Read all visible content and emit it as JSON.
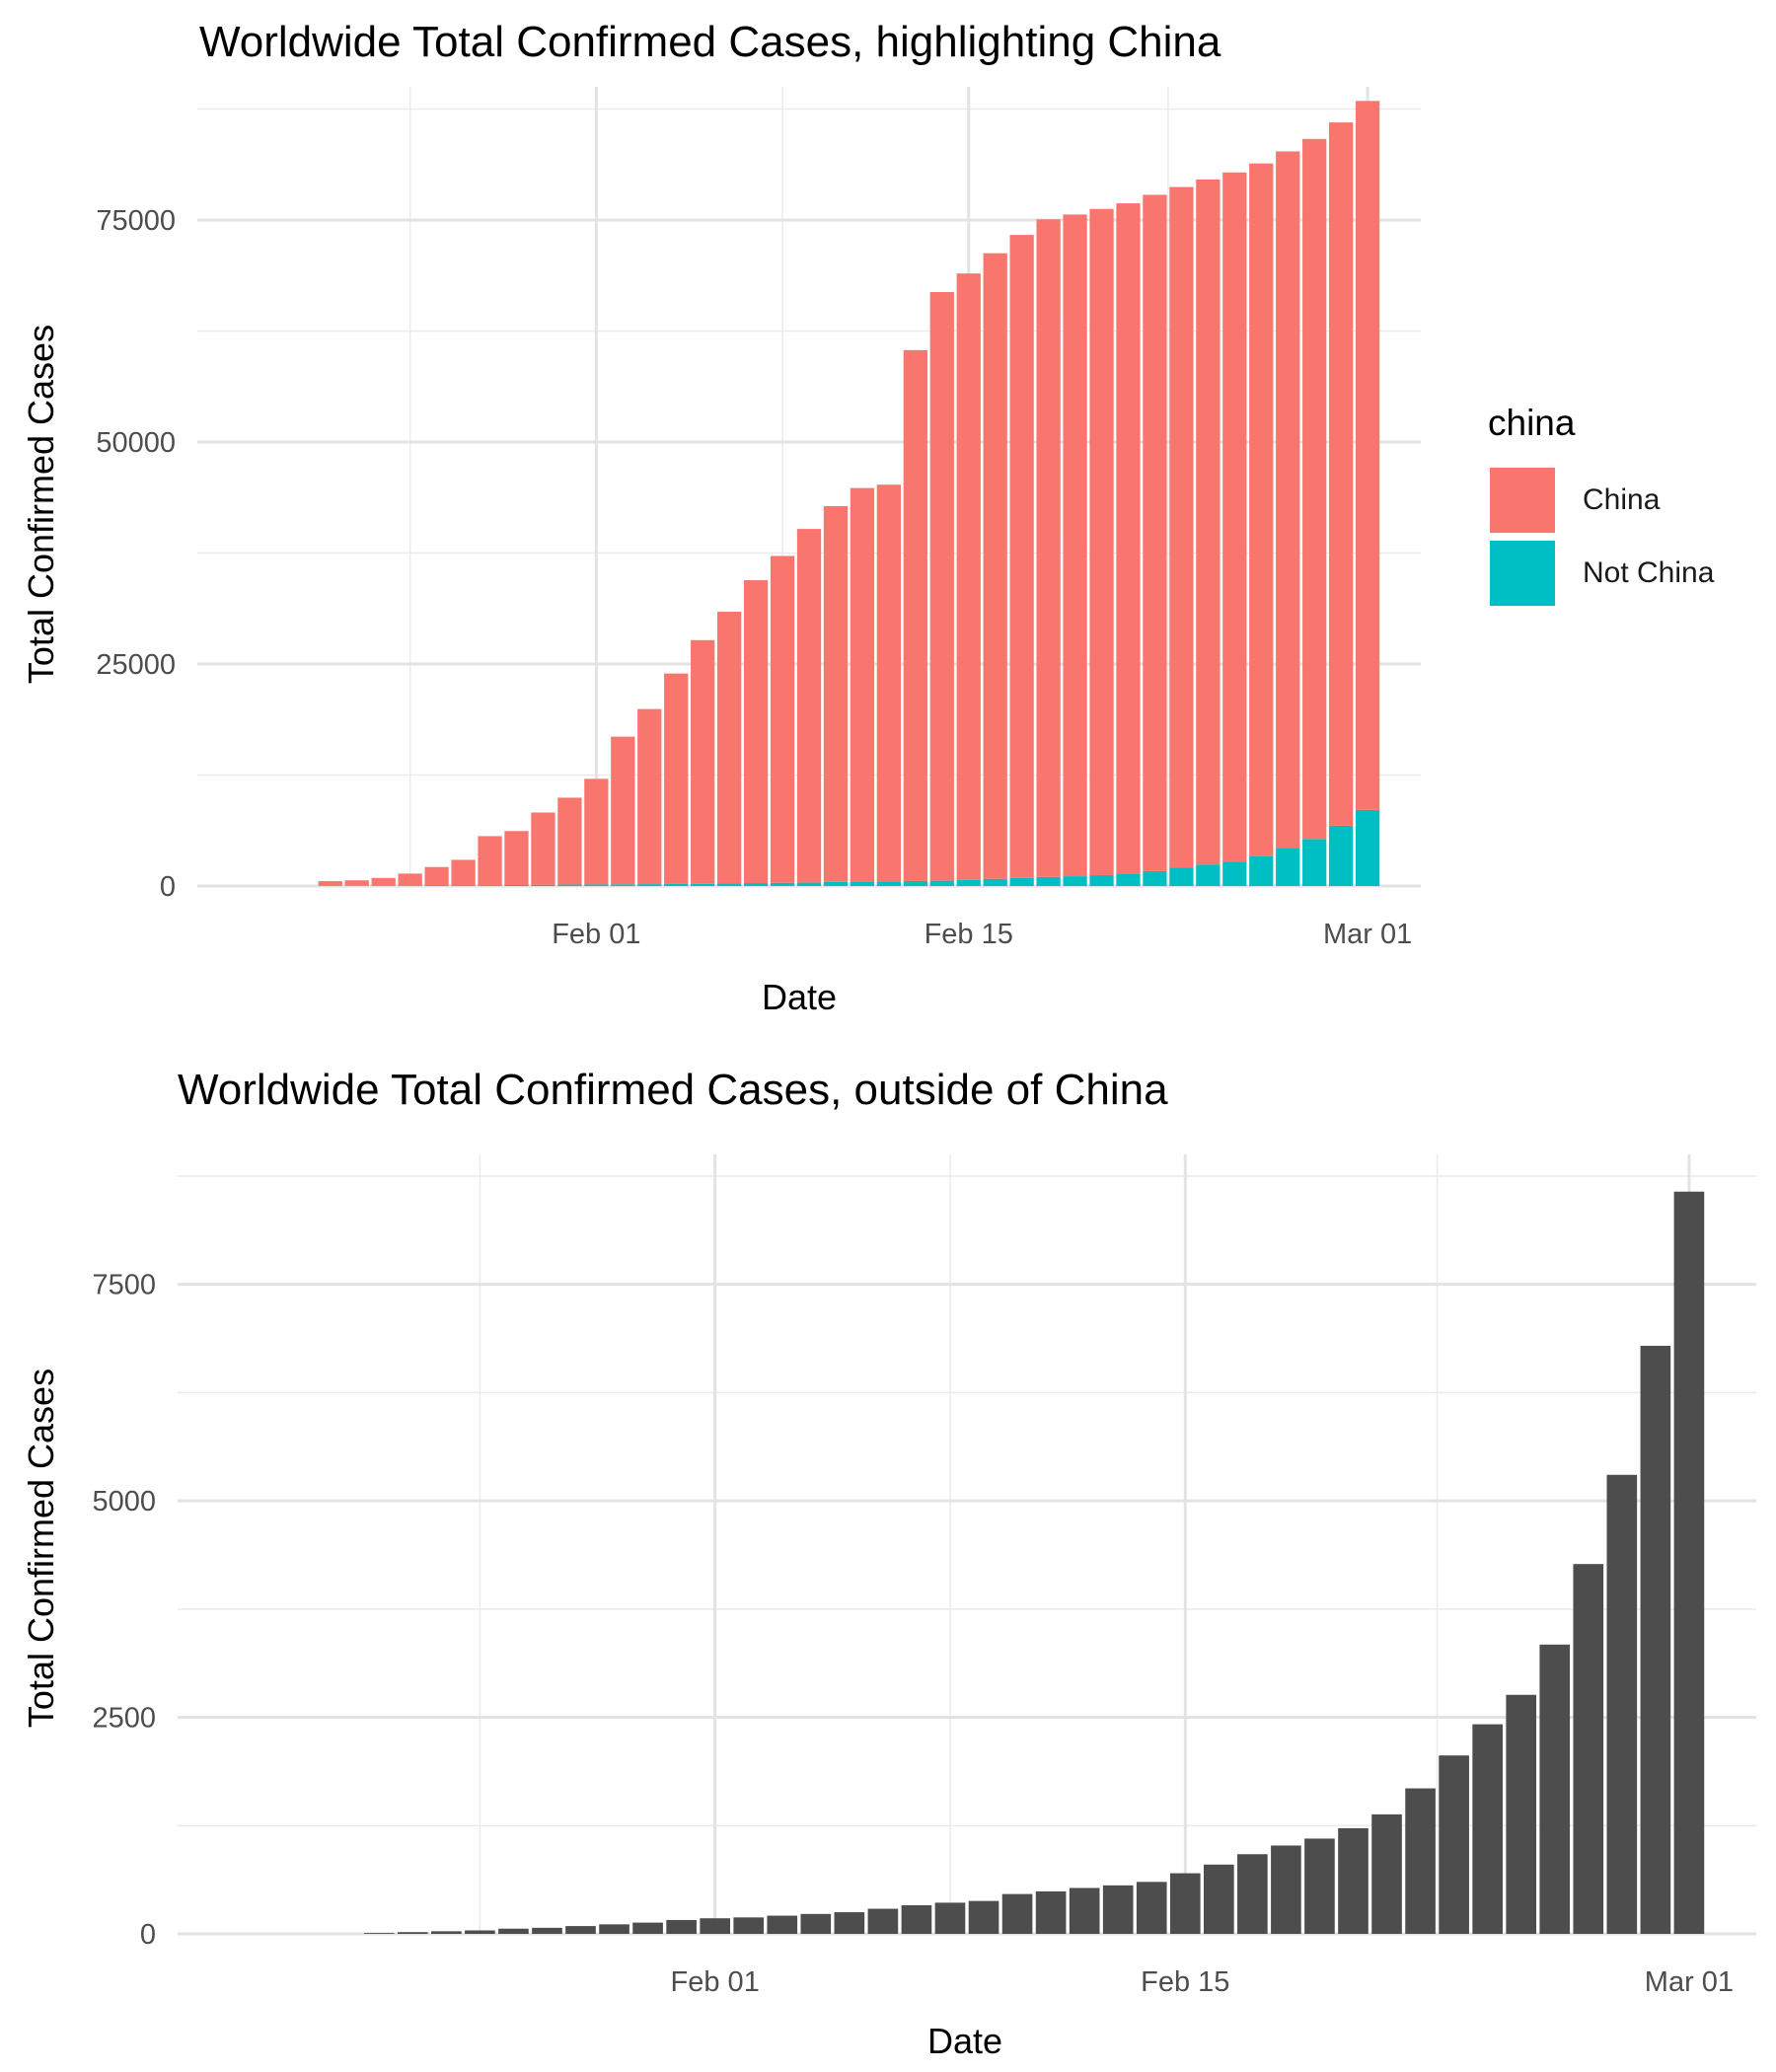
{
  "colors": {
    "china": "#F8766D",
    "not_china": "#00BFC4",
    "outside": "#4D4D4D"
  },
  "chart_data": [
    {
      "type": "bar",
      "stacked": true,
      "title": "Worldwide Total Confirmed Cases, highlighting China",
      "xlabel": "Date",
      "ylabel": "Total Confirmed Cases",
      "x_range": [
        "2020-01-17",
        "2020-03-03"
      ],
      "ylim": [
        0,
        90000
      ],
      "x_ticks": [
        {
          "date": "2020-02-01",
          "label": "Feb 01"
        },
        {
          "date": "2020-02-15",
          "label": "Feb 15"
        },
        {
          "date": "2020-03-01",
          "label": "Mar 01"
        }
      ],
      "y_ticks": [
        {
          "value": 0,
          "label": "0"
        },
        {
          "value": 25000,
          "label": "25000"
        },
        {
          "value": 50000,
          "label": "50000"
        },
        {
          "value": 75000,
          "label": "75000"
        }
      ],
      "grid": true,
      "legend": {
        "title": "china",
        "position": "right",
        "entries": [
          {
            "label": "China",
            "color": "#F8766D"
          },
          {
            "label": "Not China",
            "color": "#00BFC4"
          }
        ]
      },
      "dates": [
        "2020-01-22",
        "2020-01-23",
        "2020-01-24",
        "2020-01-25",
        "2020-01-26",
        "2020-01-27",
        "2020-01-28",
        "2020-01-29",
        "2020-01-30",
        "2020-01-31",
        "2020-02-01",
        "2020-02-02",
        "2020-02-03",
        "2020-02-04",
        "2020-02-05",
        "2020-02-06",
        "2020-02-07",
        "2020-02-08",
        "2020-02-09",
        "2020-02-10",
        "2020-02-11",
        "2020-02-12",
        "2020-02-13",
        "2020-02-14",
        "2020-02-15",
        "2020-02-16",
        "2020-02-17",
        "2020-02-18",
        "2020-02-19",
        "2020-02-20",
        "2020-02-21",
        "2020-02-22",
        "2020-02-23",
        "2020-02-24",
        "2020-02-25",
        "2020-02-26",
        "2020-02-27",
        "2020-02-28",
        "2020-02-29",
        "2020-03-01"
      ],
      "series": [
        {
          "name": "Not China",
          "color": "#00BFC4",
          "values": [
            10,
            20,
            30,
            40,
            60,
            70,
            90,
            110,
            130,
            160,
            180,
            190,
            210,
            230,
            250,
            290,
            330,
            360,
            380,
            460,
            490,
            530,
            560,
            600,
            700,
            800,
            920,
            1020,
            1100,
            1220,
            1380,
            1680,
            2060,
            2420,
            2760,
            3340,
            4270,
            5300,
            6790,
            8570
          ]
        },
        {
          "name": "China",
          "color": "#F8766D",
          "values": [
            540,
            620,
            880,
            1360,
            2080,
            2880,
            5530,
            6080,
            8150,
            9790,
            11890,
            16630,
            19720,
            23700,
            27440,
            30600,
            34110,
            36810,
            39830,
            42320,
            44330,
            44670,
            59790,
            66290,
            68280,
            70460,
            72400,
            74060,
            74520,
            75030,
            75500,
            76160,
            76660,
            77150,
            77600,
            78030,
            78460,
            78830,
            79200,
            79840
          ]
        }
      ]
    },
    {
      "type": "bar",
      "title": "Worldwide Total Confirmed Cases, outside of China",
      "xlabel": "Date",
      "ylabel": "Total Confirmed Cases",
      "x_range": [
        "2020-01-16",
        "2020-03-03"
      ],
      "ylim": [
        0,
        9000
      ],
      "x_ticks": [
        {
          "date": "2020-02-01",
          "label": "Feb 01"
        },
        {
          "date": "2020-02-15",
          "label": "Feb 15"
        },
        {
          "date": "2020-03-01",
          "label": "Mar 01"
        }
      ],
      "y_ticks": [
        {
          "value": 0,
          "label": "0"
        },
        {
          "value": 2500,
          "label": "2500"
        },
        {
          "value": 5000,
          "label": "5000"
        },
        {
          "value": 7500,
          "label": "7500"
        }
      ],
      "grid": true,
      "dates": [
        "2020-01-22",
        "2020-01-23",
        "2020-01-24",
        "2020-01-25",
        "2020-01-26",
        "2020-01-27",
        "2020-01-28",
        "2020-01-29",
        "2020-01-30",
        "2020-01-31",
        "2020-02-01",
        "2020-02-02",
        "2020-02-03",
        "2020-02-04",
        "2020-02-05",
        "2020-02-06",
        "2020-02-07",
        "2020-02-08",
        "2020-02-09",
        "2020-02-10",
        "2020-02-11",
        "2020-02-12",
        "2020-02-13",
        "2020-02-14",
        "2020-02-15",
        "2020-02-16",
        "2020-02-17",
        "2020-02-18",
        "2020-02-19",
        "2020-02-20",
        "2020-02-21",
        "2020-02-22",
        "2020-02-23",
        "2020-02-24",
        "2020-02-25",
        "2020-02-26",
        "2020-02-27",
        "2020-02-28",
        "2020-02-29",
        "2020-03-01"
      ],
      "values": [
        10,
        20,
        30,
        40,
        60,
        70,
        90,
        110,
        130,
        160,
        180,
        190,
        210,
        230,
        250,
        290,
        330,
        360,
        380,
        460,
        490,
        530,
        560,
        600,
        700,
        800,
        920,
        1020,
        1100,
        1220,
        1380,
        1680,
        2060,
        2420,
        2760,
        3340,
        4270,
        5300,
        6790,
        8570
      ]
    }
  ]
}
